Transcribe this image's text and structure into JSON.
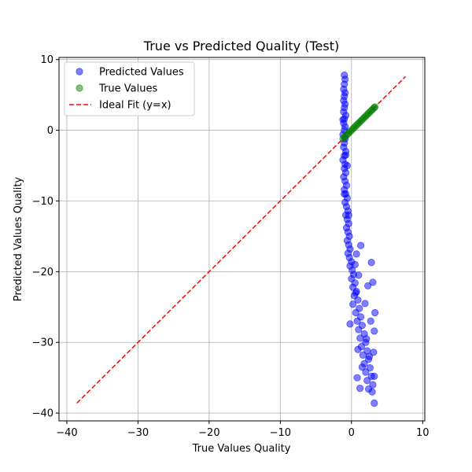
{
  "chart_data": {
    "type": "scatter",
    "title": "True vs Predicted Quality (Test)",
    "xlabel": "True Values Quality",
    "ylabel": "Predicted Values Quality",
    "xlim": [
      -41.1,
      10.3
    ],
    "ylim": [
      -41.1,
      10.3
    ],
    "xticks": [
      -40,
      -30,
      -20,
      -10,
      0,
      10
    ],
    "yticks": [
      -40,
      -30,
      -20,
      -10,
      0,
      10
    ],
    "grid": true,
    "legend": {
      "placement": "upper-left",
      "entries": [
        {
          "label": "Predicted Values",
          "kind": "marker",
          "color": "#0000ff"
        },
        {
          "label": "True Values",
          "kind": "marker",
          "color": "#008000"
        },
        {
          "label": "Ideal Fit (y=x)",
          "kind": "dashed-line",
          "color": "#ff0000"
        }
      ]
    },
    "ideal_line": {
      "x": [
        -38.6,
        7.6
      ],
      "y": [
        -38.6,
        7.6
      ],
      "color": "#ff0000"
    },
    "series": [
      {
        "name": "Predicted Values",
        "color": "#0000ff",
        "points": [
          [
            -1.0,
            7.8
          ],
          [
            -0.9,
            7.2
          ],
          [
            -1.0,
            6.5
          ],
          [
            -1.1,
            5.8
          ],
          [
            -0.9,
            5.3
          ],
          [
            -1.0,
            4.8
          ],
          [
            -1.1,
            4.2
          ],
          [
            -0.9,
            3.7
          ],
          [
            -1.0,
            3.2
          ],
          [
            -1.1,
            2.6
          ],
          [
            -0.8,
            2.1
          ],
          [
            -1.0,
            1.6
          ],
          [
            -1.1,
            1.0
          ],
          [
            -0.9,
            0.5
          ],
          [
            -1.0,
            0.0
          ],
          [
            -1.2,
            -0.6
          ],
          [
            -0.9,
            -1.2
          ],
          [
            -1.0,
            -1.8
          ],
          [
            -1.1,
            -2.4
          ],
          [
            -0.8,
            -3.0
          ],
          [
            -1.0,
            -3.6
          ],
          [
            -1.2,
            -4.2
          ],
          [
            -0.9,
            -4.8
          ],
          [
            -1.0,
            -5.4
          ],
          [
            -0.8,
            -6.0
          ],
          [
            -1.1,
            -6.6
          ],
          [
            -0.9,
            -7.2
          ],
          [
            -0.7,
            -7.8
          ],
          [
            -1.0,
            -8.4
          ],
          [
            -0.8,
            -9.0
          ],
          [
            -0.6,
            -9.6
          ],
          [
            -0.9,
            -10.2
          ],
          [
            -0.7,
            -10.8
          ],
          [
            -0.5,
            -11.4
          ],
          [
            -0.8,
            -12.0
          ],
          [
            -0.6,
            -12.6
          ],
          [
            -0.4,
            -13.2
          ],
          [
            -0.7,
            -13.8
          ],
          [
            -0.5,
            -14.4
          ],
          [
            -0.3,
            -15.0
          ],
          [
            -0.6,
            -15.6
          ],
          [
            -0.4,
            -16.2
          ],
          [
            -0.2,
            -16.8
          ],
          [
            -0.5,
            -17.4
          ],
          [
            -0.3,
            -18.0
          ],
          [
            0.0,
            -18.6
          ],
          [
            -0.2,
            -19.2
          ],
          [
            0.1,
            -19.8
          ],
          [
            0.3,
            -20.4
          ],
          [
            0.0,
            -21.0
          ],
          [
            0.5,
            -21.6
          ],
          [
            0.2,
            -22.2
          ],
          [
            0.7,
            -22.8
          ],
          [
            0.4,
            -23.4
          ],
          [
            0.9,
            -24.0
          ],
          [
            0.2,
            -24.6
          ],
          [
            1.1,
            -25.2
          ],
          [
            0.6,
            -25.8
          ],
          [
            1.3,
            -26.4
          ],
          [
            0.8,
            -27.0
          ],
          [
            1.5,
            -27.6
          ],
          [
            1.0,
            -28.2
          ],
          [
            1.8,
            -28.8
          ],
          [
            1.2,
            -29.4
          ],
          [
            2.0,
            -30.0
          ],
          [
            1.4,
            -30.6
          ],
          [
            2.2,
            -31.2
          ],
          [
            1.6,
            -31.8
          ],
          [
            2.4,
            -32.4
          ],
          [
            1.8,
            -33.0
          ],
          [
            2.6,
            -33.6
          ],
          [
            2.0,
            -34.2
          ],
          [
            2.8,
            -34.8
          ],
          [
            2.2,
            -35.4
          ],
          [
            3.0,
            -36.0
          ],
          [
            2.4,
            -36.6
          ],
          [
            2.9,
            -37.0
          ],
          [
            3.2,
            -38.6
          ],
          [
            1.2,
            -36.5
          ],
          [
            0.8,
            -35.0
          ],
          [
            2.8,
            -18.7
          ],
          [
            1.3,
            -16.3
          ],
          [
            0.7,
            -17.5
          ],
          [
            3.3,
            -25.8
          ],
          [
            -0.2,
            -27.4
          ],
          [
            3.2,
            -28.4
          ],
          [
            3.1,
            -31.4
          ],
          [
            3.2,
            -34.8
          ],
          [
            2.5,
            -32.0
          ],
          [
            1.5,
            -33.5
          ],
          [
            0.9,
            -31.0
          ],
          [
            2.7,
            -27.0
          ],
          [
            1.9,
            -24.5
          ],
          [
            2.3,
            -22.0
          ],
          [
            1.0,
            -20.5
          ],
          [
            0.5,
            -19.0
          ],
          [
            2.1,
            -29.5
          ],
          [
            0.6,
            -23.0
          ],
          [
            3.0,
            -21.5
          ],
          [
            -0.4,
            -12.0
          ],
          [
            -0.8,
            -3.5
          ],
          [
            -1.2,
            1.5
          ],
          [
            -0.6,
            -5.0
          ],
          [
            -1.0,
            -9.0
          ]
        ]
      },
      {
        "name": "True Values",
        "color": "#008000",
        "points": [
          [
            -1.2,
            -1.2
          ],
          [
            -1.0,
            -1.0
          ],
          [
            -0.8,
            -0.8
          ],
          [
            -0.6,
            -0.6
          ],
          [
            -0.4,
            -0.4
          ],
          [
            -0.2,
            -0.2
          ],
          [
            0.0,
            0.0
          ],
          [
            0.2,
            0.2
          ],
          [
            0.4,
            0.4
          ],
          [
            0.6,
            0.6
          ],
          [
            0.8,
            0.8
          ],
          [
            1.0,
            1.0
          ],
          [
            1.2,
            1.2
          ],
          [
            1.4,
            1.4
          ],
          [
            1.6,
            1.6
          ],
          [
            1.8,
            1.8
          ],
          [
            2.0,
            2.0
          ],
          [
            2.2,
            2.2
          ],
          [
            2.4,
            2.4
          ],
          [
            2.6,
            2.6
          ],
          [
            2.8,
            2.8
          ],
          [
            3.0,
            3.0
          ],
          [
            3.2,
            3.2
          ],
          [
            3.3,
            3.3
          ]
        ]
      }
    ]
  }
}
